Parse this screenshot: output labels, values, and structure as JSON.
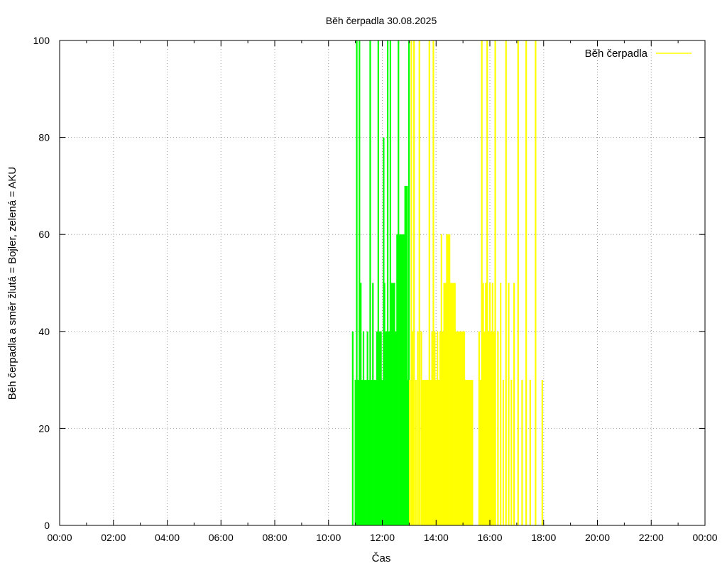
{
  "chart_data": {
    "type": "bar",
    "title": "Běh čerpadla 30.08.2025",
    "xlabel": "Čas",
    "ylabel": "Běh čerpadla a směr žlutá = Bojler, zelená = AKU",
    "xlim_hours": [
      0,
      24
    ],
    "ylim": [
      0,
      100
    ],
    "x_ticks": [
      "00:00",
      "02:00",
      "04:00",
      "06:00",
      "08:00",
      "10:00",
      "12:00",
      "14:00",
      "16:00",
      "18:00",
      "20:00",
      "22:00",
      "00:00"
    ],
    "y_ticks": [
      "0",
      "20",
      "40",
      "60",
      "80",
      "100"
    ],
    "grid": true,
    "legend": {
      "placement": "top-right",
      "label": "Běh čerpadla",
      "color": "#ffff00"
    },
    "colors": {
      "aku": "#00ff00",
      "bojler": "#ffff00"
    },
    "series": [
      {
        "key": "aku",
        "x_unit": "hours",
        "bars": [
          [
            10.9,
            40
          ],
          [
            11.0,
            30
          ],
          [
            11.05,
            100
          ],
          [
            11.1,
            30
          ],
          [
            11.15,
            100
          ],
          [
            11.2,
            50
          ],
          [
            11.25,
            30
          ],
          [
            11.3,
            40
          ],
          [
            11.35,
            30
          ],
          [
            11.4,
            30
          ],
          [
            11.45,
            40
          ],
          [
            11.5,
            30
          ],
          [
            11.55,
            100
          ],
          [
            11.6,
            30
          ],
          [
            11.65,
            50
          ],
          [
            11.7,
            30
          ],
          [
            11.75,
            30
          ],
          [
            11.8,
            40
          ],
          [
            11.85,
            100
          ],
          [
            11.9,
            40
          ],
          [
            11.95,
            40
          ],
          [
            12.0,
            30
          ],
          [
            12.05,
            80
          ],
          [
            12.08,
            50
          ],
          [
            12.12,
            40
          ],
          [
            12.15,
            40
          ],
          [
            12.2,
            100
          ],
          [
            12.25,
            40
          ],
          [
            12.3,
            100
          ],
          [
            12.35,
            50
          ],
          [
            12.4,
            50
          ],
          [
            12.45,
            50
          ],
          [
            12.5,
            40
          ],
          [
            12.55,
            60
          ],
          [
            12.6,
            100
          ],
          [
            12.65,
            60
          ],
          [
            12.7,
            60
          ],
          [
            12.75,
            60
          ],
          [
            12.8,
            60
          ],
          [
            12.85,
            70
          ],
          [
            12.88,
            70
          ],
          [
            12.92,
            70
          ],
          [
            12.96,
            30
          ],
          [
            12.99,
            100
          ]
        ]
      },
      {
        "key": "bojler",
        "x_unit": "hours",
        "bars": [
          [
            13.02,
            30
          ],
          [
            13.08,
            100
          ],
          [
            13.13,
            40
          ],
          [
            13.18,
            100
          ],
          [
            13.25,
            30
          ],
          [
            13.32,
            40
          ],
          [
            13.38,
            100
          ],
          [
            13.45,
            40
          ],
          [
            13.5,
            30
          ],
          [
            13.55,
            30
          ],
          [
            13.6,
            30
          ],
          [
            13.65,
            30
          ],
          [
            13.7,
            30
          ],
          [
            13.75,
            100
          ],
          [
            13.8,
            30
          ],
          [
            13.85,
            40
          ],
          [
            13.9,
            100
          ],
          [
            13.95,
            40
          ],
          [
            14.0,
            30
          ],
          [
            14.05,
            40
          ],
          [
            14.1,
            30
          ],
          [
            14.15,
            40
          ],
          [
            14.2,
            60
          ],
          [
            14.25,
            40
          ],
          [
            14.3,
            50
          ],
          [
            14.35,
            50
          ],
          [
            14.4,
            60
          ],
          [
            14.45,
            60
          ],
          [
            14.5,
            60
          ],
          [
            14.55,
            50
          ],
          [
            14.6,
            50
          ],
          [
            14.65,
            50
          ],
          [
            14.7,
            50
          ],
          [
            14.75,
            40
          ],
          [
            14.8,
            40
          ],
          [
            14.85,
            40
          ],
          [
            14.9,
            40
          ],
          [
            14.95,
            40
          ],
          [
            15.0,
            40
          ],
          [
            15.05,
            40
          ],
          [
            15.1,
            30
          ],
          [
            15.15,
            30
          ],
          [
            15.2,
            30
          ],
          [
            15.25,
            30
          ],
          [
            15.3,
            30
          ],
          [
            15.35,
            30
          ],
          [
            15.6,
            40
          ],
          [
            15.65,
            30
          ],
          [
            15.7,
            100
          ],
          [
            15.75,
            50
          ],
          [
            15.8,
            40
          ],
          [
            15.85,
            50
          ],
          [
            15.9,
            100
          ],
          [
            15.95,
            40
          ],
          [
            16.0,
            50
          ],
          [
            16.05,
            40
          ],
          [
            16.1,
            50
          ],
          [
            16.15,
            40
          ],
          [
            16.2,
            100
          ],
          [
            16.3,
            40
          ],
          [
            16.4,
            50
          ],
          [
            16.5,
            30
          ],
          [
            16.6,
            100
          ],
          [
            16.7,
            50
          ],
          [
            16.8,
            30
          ],
          [
            16.9,
            50
          ],
          [
            17.05,
            100
          ],
          [
            17.2,
            30
          ],
          [
            17.35,
            100
          ],
          [
            17.5,
            30
          ],
          [
            17.7,
            100
          ],
          [
            17.95,
            30
          ]
        ]
      }
    ]
  }
}
